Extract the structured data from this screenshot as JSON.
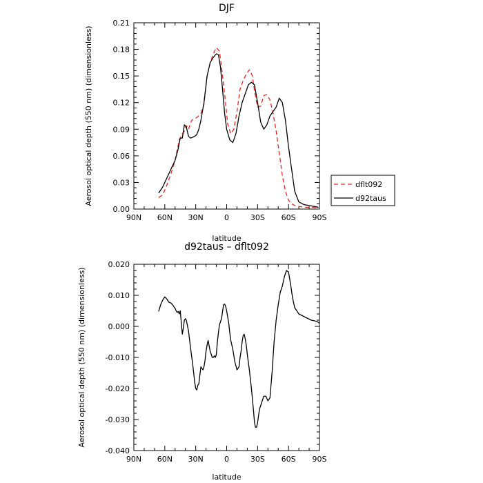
{
  "figure": {
    "panels_count": 2
  },
  "chart_data": [
    {
      "type": "line",
      "title": "DJF",
      "xlabel": "latitude",
      "ylabel": "Aerosol optical depth (550 nm) (dimensionless)",
      "xlim": [
        90,
        -90
      ],
      "ylim": [
        0,
        0.21
      ],
      "x_ticks": [
        90,
        60,
        30,
        0,
        -30,
        -60,
        -90
      ],
      "x_tick_labels": [
        "90N",
        "60N",
        "30N",
        "0",
        "30S",
        "60S",
        "90S"
      ],
      "y_ticks": [
        0,
        0.03,
        0.06,
        0.09,
        0.12,
        0.15,
        0.18,
        0.21
      ],
      "y_tick_labels": [
        "0.00",
        "0.03",
        "0.06",
        "0.09",
        "0.12",
        "0.15",
        "0.18",
        "0.21"
      ],
      "legend": {
        "placement": "outside-right",
        "entries": [
          "dflt092",
          "d92taus"
        ]
      },
      "series": [
        {
          "name": "dflt092",
          "color": "#e8231f",
          "dash": "dashed",
          "x": [
            66,
            62,
            58,
            54,
            50,
            46,
            43,
            41,
            39,
            37,
            34,
            31,
            28,
            25,
            22,
            19,
            16,
            13,
            10,
            7,
            5,
            2,
            -1,
            -4,
            -7,
            -10,
            -13,
            -16,
            -19,
            -22,
            -25,
            -27,
            -30,
            -33,
            -36,
            -39,
            -42,
            -45,
            -48,
            -51,
            -54,
            -57,
            -60,
            -63,
            -66,
            -70,
            -75,
            -80,
            -85,
            -89
          ],
          "values": [
            0.013,
            0.016,
            0.027,
            0.04,
            0.055,
            0.078,
            0.085,
            0.088,
            0.094,
            0.09,
            0.1,
            0.102,
            0.104,
            0.108,
            0.118,
            0.15,
            0.165,
            0.175,
            0.182,
            0.178,
            0.16,
            0.13,
            0.096,
            0.085,
            0.09,
            0.11,
            0.135,
            0.145,
            0.152,
            0.157,
            0.15,
            0.133,
            0.115,
            0.116,
            0.128,
            0.129,
            0.123,
            0.108,
            0.088,
            0.063,
            0.038,
            0.02,
            0.01,
            0.006,
            0.004,
            0.003,
            0.002,
            0.002,
            0.002,
            0.001
          ]
        },
        {
          "name": "d92taus",
          "color": "#000000",
          "dash": "solid",
          "x": [
            66,
            62,
            58,
            54,
            50,
            47,
            45,
            43,
            41,
            39,
            37,
            35,
            33,
            31,
            29,
            27,
            25,
            22,
            19,
            16,
            13,
            10,
            8,
            6,
            4,
            2,
            0,
            -3,
            -6,
            -9,
            -12,
            -15,
            -18,
            -21,
            -24,
            -27,
            -30,
            -33,
            -36,
            -39,
            -42,
            -45,
            -48,
            -51,
            -54,
            -57,
            -60,
            -63,
            -66,
            -70,
            -75,
            -80,
            -85,
            -89
          ],
          "values": [
            0.018,
            0.025,
            0.035,
            0.045,
            0.055,
            0.068,
            0.08,
            0.08,
            0.095,
            0.092,
            0.082,
            0.08,
            0.081,
            0.082,
            0.084,
            0.09,
            0.1,
            0.12,
            0.15,
            0.165,
            0.171,
            0.175,
            0.174,
            0.16,
            0.135,
            0.108,
            0.09,
            0.078,
            0.075,
            0.085,
            0.105,
            0.12,
            0.13,
            0.14,
            0.143,
            0.14,
            0.12,
            0.098,
            0.09,
            0.095,
            0.105,
            0.11,
            0.115,
            0.125,
            0.12,
            0.1,
            0.07,
            0.045,
            0.02,
            0.008,
            0.005,
            0.004,
            0.003,
            0.002
          ]
        }
      ]
    },
    {
      "type": "line",
      "title": "d92taus – dflt092",
      "xlabel": "latitude",
      "ylabel": "Aerosol optical depth (550 nm) (dimensionless)",
      "xlim": [
        90,
        -90
      ],
      "ylim": [
        -0.04,
        0.02
      ],
      "x_ticks": [
        90,
        60,
        30,
        0,
        -30,
        -60,
        -90
      ],
      "x_tick_labels": [
        "90N",
        "60N",
        "30N",
        "0",
        "30S",
        "60S",
        "90S"
      ],
      "y_ticks": [
        -0.04,
        -0.03,
        -0.02,
        -0.01,
        0,
        0.01,
        0.02
      ],
      "y_tick_labels": [
        "-0.040",
        "-0.030",
        "-0.020",
        "-0.010",
        "0.000",
        "0.010",
        "0.020"
      ],
      "series": [
        {
          "color": "#000000",
          "dash": "solid",
          "x": [
            66,
            64,
            62,
            60,
            58,
            56,
            54,
            52,
            51,
            50,
            49,
            48,
            47,
            46,
            45,
            44,
            43,
            42,
            41,
            40,
            39,
            37,
            35,
            33,
            31,
            30,
            29,
            28,
            27,
            25,
            23,
            22,
            21,
            20,
            19,
            18,
            16,
            14,
            13,
            12,
            11,
            10,
            9,
            8,
            7,
            5,
            3,
            2,
            1,
            0,
            -1,
            -2,
            -3,
            -4,
            -6,
            -8,
            -10,
            -11,
            -12,
            -13,
            -14,
            -15,
            -16,
            -17,
            -18,
            -19,
            -20,
            -22,
            -24,
            -26,
            -27,
            -28,
            -29,
            -30,
            -31,
            -32,
            -34,
            -36,
            -38,
            -40,
            -42,
            -44,
            -46,
            -48,
            -50,
            -52,
            -54,
            -56,
            -58,
            -60,
            -62,
            -64,
            -66,
            -68,
            -70,
            -73,
            -76,
            -79,
            -82,
            -85,
            -88,
            -90
          ],
          "values": [
            0.0048,
            0.007,
            0.0085,
            0.0095,
            0.0088,
            0.0078,
            0.0075,
            0.0068,
            0.0062,
            0.0058,
            0.005,
            0.0045,
            0.0048,
            0.004,
            0.005,
            0.0012,
            -0.0025,
            -0.0005,
            0.002,
            0.0025,
            0.0018,
            -0.0015,
            -0.007,
            -0.012,
            -0.018,
            -0.02,
            -0.0205,
            -0.019,
            -0.0185,
            -0.013,
            -0.014,
            -0.013,
            -0.011,
            -0.008,
            -0.006,
            -0.0045,
            -0.008,
            -0.01,
            -0.01,
            -0.0095,
            -0.01,
            -0.009,
            -0.005,
            -0.002,
            0.0005,
            0.0025,
            0.007,
            0.0072,
            0.0065,
            0.005,
            0.003,
            0.001,
            -0.002,
            -0.0045,
            -0.0075,
            -0.0115,
            -0.014,
            -0.0135,
            -0.013,
            -0.01,
            -0.008,
            -0.005,
            -0.003,
            -0.0025,
            -0.004,
            -0.006,
            -0.009,
            -0.014,
            -0.02,
            -0.027,
            -0.031,
            -0.0325,
            -0.0325,
            -0.031,
            -0.0285,
            -0.0265,
            -0.0245,
            -0.0225,
            -0.0225,
            -0.024,
            -0.023,
            -0.015,
            -0.005,
            0.002,
            0.007,
            0.011,
            0.013,
            0.016,
            0.018,
            0.0175,
            0.0135,
            0.009,
            0.006,
            0.005,
            0.004,
            0.0035,
            0.003,
            0.0025,
            0.002,
            0.0018,
            0.0015,
            0.001
          ]
        }
      ]
    }
  ]
}
